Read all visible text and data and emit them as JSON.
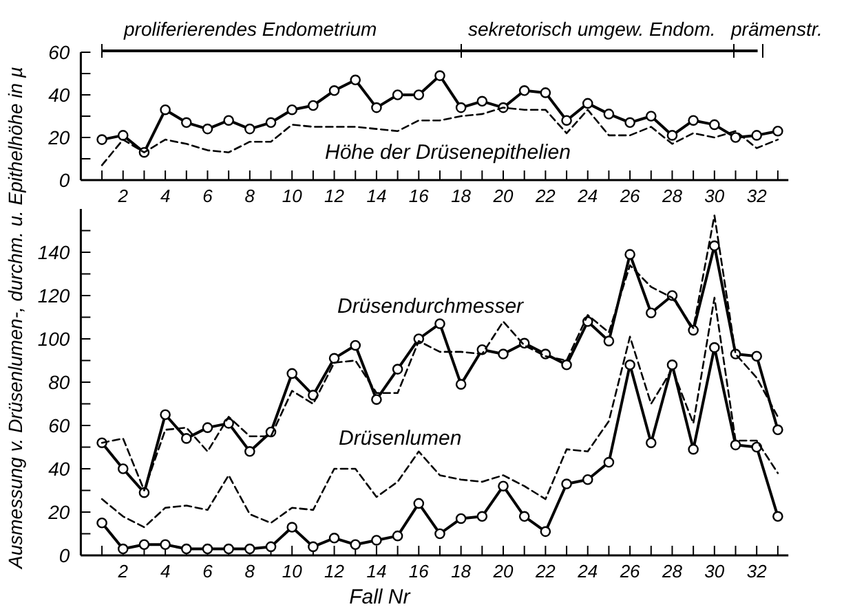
{
  "chart_data": [
    {
      "type": "line",
      "x": [
        1,
        2,
        3,
        4,
        5,
        6,
        7,
        8,
        9,
        10,
        11,
        12,
        13,
        14,
        15,
        16,
        17,
        18,
        19,
        20,
        21,
        22,
        23,
        24,
        25,
        26,
        27,
        28,
        29,
        30,
        31,
        32,
        33
      ],
      "series": [
        {
          "color": "#000000",
          "marker": "circle",
          "line_style": "solid",
          "values": [
            19,
            21,
            13,
            33,
            27,
            24,
            28,
            24,
            27,
            33,
            35,
            42,
            47,
            34,
            40,
            40,
            49,
            34,
            37,
            34,
            42,
            41,
            28,
            36,
            31,
            27,
            30,
            21,
            28,
            26,
            20,
            21,
            23
          ]
        },
        {
          "color": "#000000",
          "marker": "none",
          "line_style": "dashed",
          "values": [
            7,
            19,
            13,
            19,
            17,
            14,
            13,
            18,
            18,
            26,
            25,
            25,
            25,
            24,
            23,
            28,
            28,
            30,
            31,
            34,
            33,
            33,
            22,
            33,
            21,
            21,
            25,
            17,
            22,
            20,
            23,
            15,
            19
          ]
        }
      ],
      "xlim": [
        0,
        33.5
      ],
      "xticks": [
        {
          "value": 1,
          "label": null
        },
        2,
        {
          "value": 3,
          "label": null
        },
        4,
        {
          "value": 5,
          "label": null
        },
        6,
        {
          "value": 7,
          "label": null
        },
        8,
        {
          "value": 9,
          "label": null
        },
        10,
        {
          "value": 11,
          "label": null
        },
        12,
        {
          "value": 13,
          "label": null
        },
        14,
        {
          "value": 15,
          "label": null
        },
        16,
        {
          "value": 17,
          "label": null
        },
        18,
        {
          "value": 19,
          "label": null
        },
        20,
        {
          "value": 21,
          "label": null
        },
        22,
        {
          "value": 23,
          "label": null
        },
        24,
        {
          "value": 25,
          "label": null
        },
        26,
        {
          "value": 27,
          "label": null
        },
        28,
        {
          "value": 29,
          "label": null
        },
        30,
        {
          "value": 31,
          "label": null
        },
        32,
        {
          "value": 33,
          "label": null
        }
      ],
      "ylim": [
        0,
        60
      ],
      "yticks": [
        0,
        {
          "value": 10,
          "label": null
        },
        20,
        {
          "value": 30,
          "label": null
        },
        40,
        {
          "value": 50,
          "label": null
        },
        60
      ],
      "annotations": [
        "Höhe der Drüsenepithelien",
        "proliferierendes Endometrium",
        "sekretorisch umgew. Endom.",
        "prämenstr."
      ]
    },
    {
      "type": "line",
      "x": [
        1,
        2,
        3,
        4,
        5,
        6,
        7,
        8,
        9,
        10,
        11,
        12,
        13,
        14,
        15,
        16,
        17,
        18,
        19,
        20,
        21,
        22,
        23,
        24,
        25,
        26,
        27,
        28,
        29,
        30,
        31,
        32,
        33
      ],
      "series": [
        {
          "color": "#000000",
          "marker": "circle",
          "line_style": "solid",
          "values": [
            52,
            40,
            29,
            65,
            54,
            59,
            61,
            48,
            57,
            84,
            74,
            91,
            97,
            72,
            86,
            100,
            107,
            79,
            95,
            93,
            98,
            93,
            88,
            108,
            99,
            139,
            112,
            120,
            104,
            143,
            93,
            92,
            58
          ]
        },
        {
          "color": "#000000",
          "marker": "none",
          "line_style": "dashed",
          "values": [
            52,
            54,
            30,
            58,
            59,
            48,
            64,
            55,
            55,
            76,
            70,
            89,
            90,
            75,
            75,
            99,
            94,
            94,
            93,
            108,
            97,
            92,
            90,
            111,
            103,
            134,
            124,
            119,
            105,
            157,
            93,
            82,
            64
          ]
        },
        {
          "color": "#000000",
          "marker": "circle",
          "line_style": "solid",
          "values": [
            15,
            3,
            5,
            5,
            3,
            3,
            3,
            3,
            4,
            13,
            4,
            8,
            5,
            7,
            9,
            24,
            10,
            17,
            18,
            32,
            18,
            11,
            33,
            35,
            43,
            88,
            52,
            88,
            49,
            96,
            51,
            50,
            18
          ]
        },
        {
          "color": "#000000",
          "marker": "none",
          "line_style": "dashed",
          "values": [
            26,
            18,
            13,
            22,
            23,
            21,
            37,
            19,
            15,
            22,
            21,
            40,
            40,
            27,
            34,
            48,
            37,
            35,
            34,
            37,
            32,
            26,
            49,
            48,
            62,
            101,
            70,
            86,
            61,
            119,
            53,
            53,
            38
          ]
        }
      ],
      "xlim": [
        0,
        33.5
      ],
      "xticks": [
        {
          "value": 1,
          "label": null
        },
        2,
        {
          "value": 3,
          "label": null
        },
        4,
        {
          "value": 5,
          "label": null
        },
        6,
        {
          "value": 7,
          "label": null
        },
        8,
        {
          "value": 9,
          "label": null
        },
        10,
        {
          "value": 11,
          "label": null
        },
        12,
        {
          "value": 13,
          "label": null
        },
        14,
        {
          "value": 15,
          "label": null
        },
        16,
        {
          "value": 17,
          "label": null
        },
        18,
        {
          "value": 19,
          "label": null
        },
        20,
        {
          "value": 21,
          "label": null
        },
        22,
        {
          "value": 23,
          "label": null
        },
        24,
        {
          "value": 25,
          "label": null
        },
        26,
        {
          "value": 27,
          "label": null
        },
        28,
        {
          "value": 29,
          "label": null
        },
        30,
        {
          "value": 31,
          "label": null
        },
        32,
        {
          "value": 33,
          "label": null
        }
      ],
      "ylim": [
        0,
        160
      ],
      "yticks": [
        0,
        {
          "value": 10,
          "label": null
        },
        20,
        {
          "value": 30,
          "label": null
        },
        40,
        {
          "value": 50,
          "label": null
        },
        60,
        {
          "value": 70,
          "label": null
        },
        80,
        {
          "value": 90,
          "label": null
        },
        100,
        {
          "value": 110,
          "label": null
        },
        120,
        {
          "value": 130,
          "label": null
        },
        140,
        {
          "value": 150,
          "label": null
        }
      ],
      "xlabel": "Fall Nr",
      "ylabel": "Ausmessung v. Drüsenlumen-, durchm. u. Epithelhöhe in µ",
      "annotations": [
        "Drüsendurchmesser",
        "Drüsenlumen"
      ]
    }
  ]
}
